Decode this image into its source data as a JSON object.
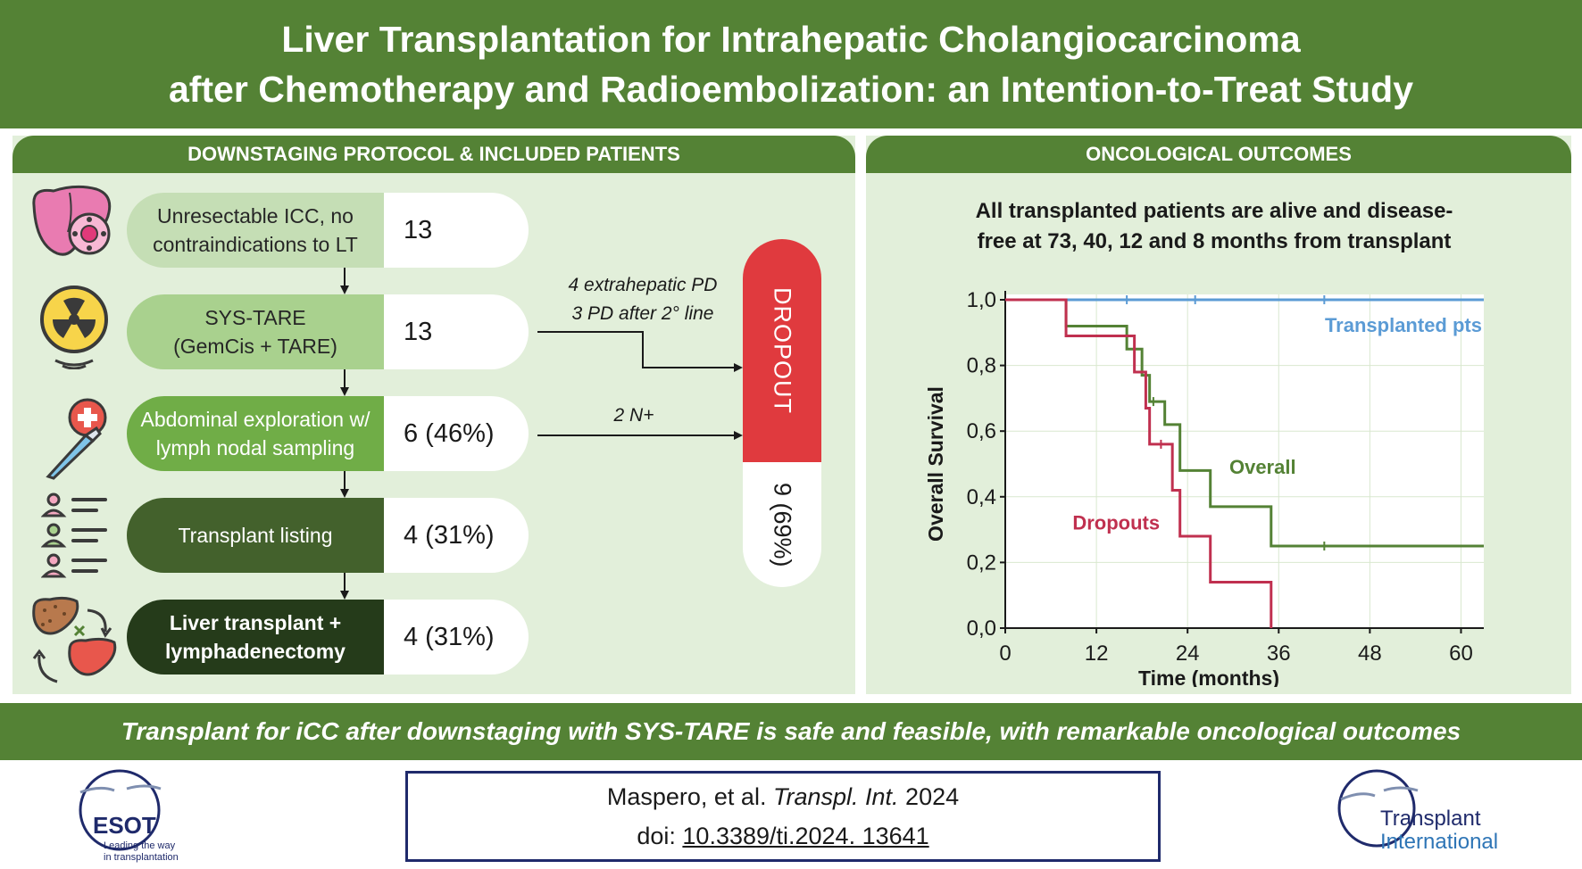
{
  "title": {
    "line1": "Liver Transplantation for Intrahepatic Cholangiocarcinoma",
    "line2": "after Chemotherapy and Radioembolization: an Intention-to-Treat Study"
  },
  "left_panel": {
    "header": "DOWNSTAGING PROTOCOL & INCLUDED PATIENTS",
    "steps": [
      {
        "label": "Unresectable ICC, no contraindications to LT",
        "value": "13",
        "icon": "liver-tumor-icon"
      },
      {
        "label": "SYS-TARE (GemCis + TARE)",
        "value": "13",
        "icon": "radiation-icon"
      },
      {
        "label": "Abdominal exploration w/ lymph nodal sampling",
        "value": "6 (46%)",
        "icon": "scalpel-icon"
      },
      {
        "label": "Transplant listing",
        "value": "4 (31%)",
        "icon": "patient-list-icon"
      },
      {
        "label": "Liver transplant + lymphadenectomy",
        "value": "4 (31%)",
        "icon": "liver-exchange-icon"
      }
    ],
    "edge_labels": {
      "sys_tare_line1": "4 extrahepatic PD",
      "sys_tare_line2": "3 PD after 2° line",
      "exploration": "2 N+"
    },
    "dropout": {
      "label": "DROPOUT",
      "value": "9 (69%)"
    }
  },
  "right_panel": {
    "header": "ONCOLOGICAL OUTCOMES",
    "headline_line1": "All transplanted patients are alive and disease-",
    "headline_line2": "free at 73, 40, 12 and 8 months from transplant"
  },
  "chart_data": {
    "type": "line",
    "subtype": "kaplan-meier",
    "xlabel": "Time (months)",
    "ylabel": "Overall Survival",
    "xlim": [
      0,
      63
    ],
    "ylim": [
      0,
      1.0
    ],
    "xticks": [
      0,
      12,
      24,
      36,
      48,
      60
    ],
    "yticks": [
      0.0,
      0.2,
      0.4,
      0.6,
      0.8,
      1.0
    ],
    "ytick_labels": [
      "0,0",
      "0,2",
      "0,4",
      "0,6",
      "0,8",
      "1,0"
    ],
    "grid": true,
    "series": [
      {
        "name": "Transplanted pts",
        "color": "#5b9bd5",
        "x": [
          0,
          63
        ],
        "y": [
          1.0,
          1.0
        ],
        "censor_x": [
          16,
          25,
          42
        ]
      },
      {
        "name": "Overall",
        "color": "#548235",
        "x": [
          0,
          8,
          16,
          18,
          19,
          21,
          23,
          27,
          35,
          63
        ],
        "y": [
          1.0,
          0.92,
          0.85,
          0.77,
          0.69,
          0.62,
          0.48,
          0.37,
          0.25,
          0.25
        ],
        "censor_x": [
          19.5,
          42
        ]
      },
      {
        "name": "Dropouts",
        "color": "#c0304f",
        "x": [
          0,
          8,
          17,
          18.5,
          19,
          22,
          23,
          27,
          35
        ],
        "y": [
          1.0,
          0.89,
          0.78,
          0.67,
          0.56,
          0.42,
          0.28,
          0.14,
          0.0
        ],
        "censor_x": [
          20.5
        ]
      }
    ]
  },
  "footer": {
    "message": "Transplant for iCC after downstaging with SYS-TARE is safe and feasible, with remarkable oncological outcomes"
  },
  "citation": {
    "authors": "Maspero, et al.",
    "journal": "Transpl. Int.",
    "year": "2024",
    "doi_prefix": "doi:",
    "doi": "10.3389/ti.2024. 13641"
  },
  "logos": {
    "esot": {
      "name": "ESOT",
      "tagline_line1": "Leading the way",
      "tagline_line2": "in transplantation"
    },
    "ti": {
      "line1": "Transplant",
      "line2": "International"
    }
  },
  "colors": {
    "banner_green": "#548235",
    "panel_bg": "#e2efda",
    "dropout_red": "#e03a3e",
    "navy": "#1f2a6b",
    "ti_blue": "#2e75b6"
  }
}
